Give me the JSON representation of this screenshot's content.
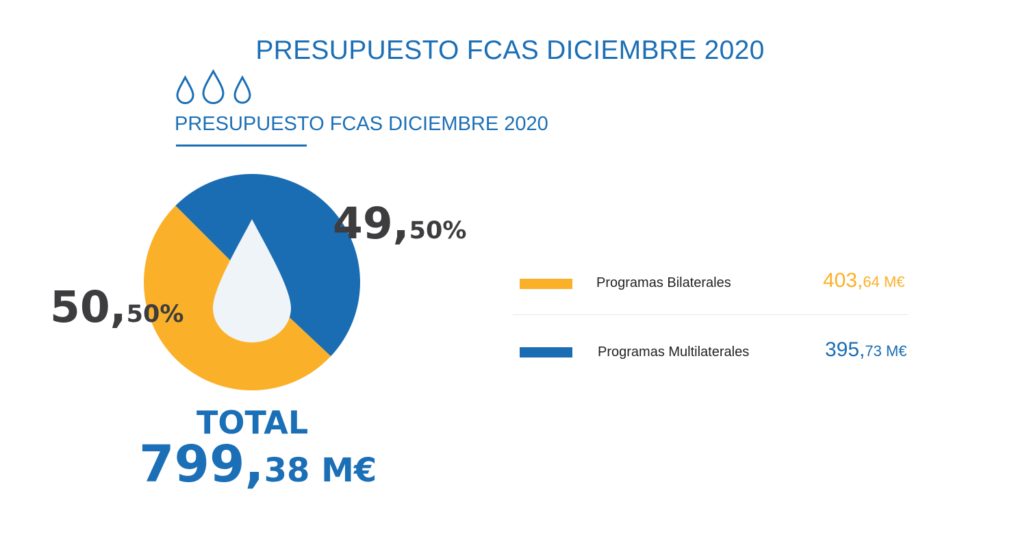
{
  "header": {
    "title": "PRESUPUESTO FCAS DICIEMBRE 2020",
    "subtitle": "PRESUPUESTO FCAS DICIEMBRE 2020",
    "icon": "water-drops-icon"
  },
  "colors": {
    "blue": "#1a6db3",
    "orange": "#fbb029",
    "drop": "#eff4f8",
    "text_dark": "#3d3c3f"
  },
  "chart_data": {
    "type": "pie",
    "title": "",
    "center_icon": "water-drop-icon",
    "slices": [
      {
        "name": "Programas Bilaterales",
        "percent": 50.5,
        "percent_int": "50,",
        "percent_dec": "50%",
        "value": 403.64,
        "value_int": "403,",
        "value_dec": "64 M€",
        "color": "#fbb029"
      },
      {
        "name": "Programas Multilaterales",
        "percent": 49.5,
        "percent_int": "49,",
        "percent_dec": "50%",
        "value": 395.73,
        "value_int": "395,",
        "value_dec": "73 M€",
        "color": "#1a6db3"
      }
    ],
    "legend_placement": "right",
    "total": {
      "label": "TOTAL",
      "value": 799.38,
      "value_int": "799,",
      "value_dec": "38 M€"
    }
  }
}
